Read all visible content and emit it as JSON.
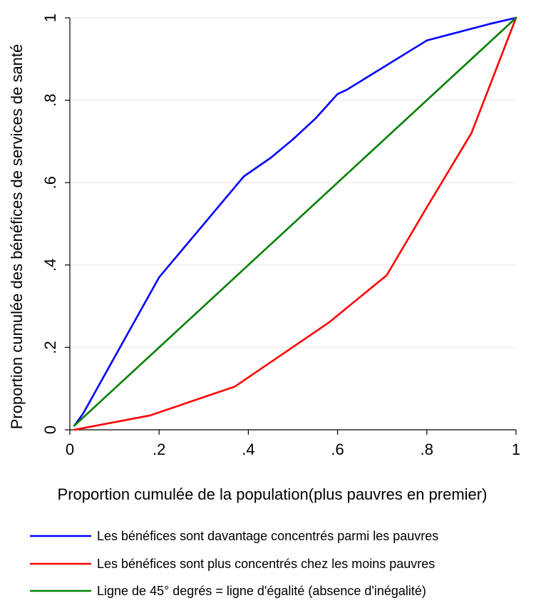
{
  "chart_data": {
    "type": "line",
    "title": "",
    "xlabel": "Proportion cumulée de la population(plus pauvres en premier)",
    "ylabel": "Proportion cumulée des bénéfices de services de santé",
    "xlim": [
      0,
      1
    ],
    "ylim": [
      0,
      1
    ],
    "x_ticks": [
      {
        "value": 0,
        "label": "0"
      },
      {
        "value": 0.2,
        "label": ".2"
      },
      {
        "value": 0.4,
        "label": ".4"
      },
      {
        "value": 0.6,
        "label": ".6"
      },
      {
        "value": 0.8,
        "label": ".8"
      },
      {
        "value": 1,
        "label": "1"
      }
    ],
    "y_ticks": [
      {
        "value": 0,
        "label": "0"
      },
      {
        "value": 0.2,
        "label": ".2"
      },
      {
        "value": 0.4,
        "label": ".4"
      },
      {
        "value": 0.6,
        "label": ".6"
      },
      {
        "value": 0.8,
        "label": ".8"
      },
      {
        "value": 1,
        "label": "1"
      }
    ],
    "grid": "horizontal",
    "legend_position": "bottom",
    "series": [
      {
        "name": "Les bénéfices sont davantage concentrés parmi les pauvres",
        "color": "#0000ff",
        "points": [
          [
            0.01,
            0.01
          ],
          [
            0.03,
            0.04
          ],
          [
            0.2,
            0.37
          ],
          [
            0.39,
            0.615
          ],
          [
            0.45,
            0.66
          ],
          [
            0.5,
            0.705
          ],
          [
            0.55,
            0.755
          ],
          [
            0.6,
            0.815
          ],
          [
            0.62,
            0.825
          ],
          [
            0.8,
            0.945
          ],
          [
            0.94,
            0.985
          ],
          [
            1.0,
            1.0
          ]
        ]
      },
      {
        "name": "Les bénéfices sont plus concentrés chez les moins pauvres",
        "color": "#ff0000",
        "points": [
          [
            0.01,
            0.0
          ],
          [
            0.18,
            0.035
          ],
          [
            0.37,
            0.105
          ],
          [
            0.58,
            0.26
          ],
          [
            0.71,
            0.375
          ],
          [
            0.8,
            0.54
          ],
          [
            0.9,
            0.72
          ],
          [
            1.0,
            1.0
          ]
        ]
      },
      {
        "name": "Ligne de 45° degrés = ligne d'égalité (absence d'inégalité)",
        "color": "#008000",
        "points": [
          [
            0.01,
            0.01
          ],
          [
            1.0,
            1.0
          ]
        ]
      }
    ]
  }
}
